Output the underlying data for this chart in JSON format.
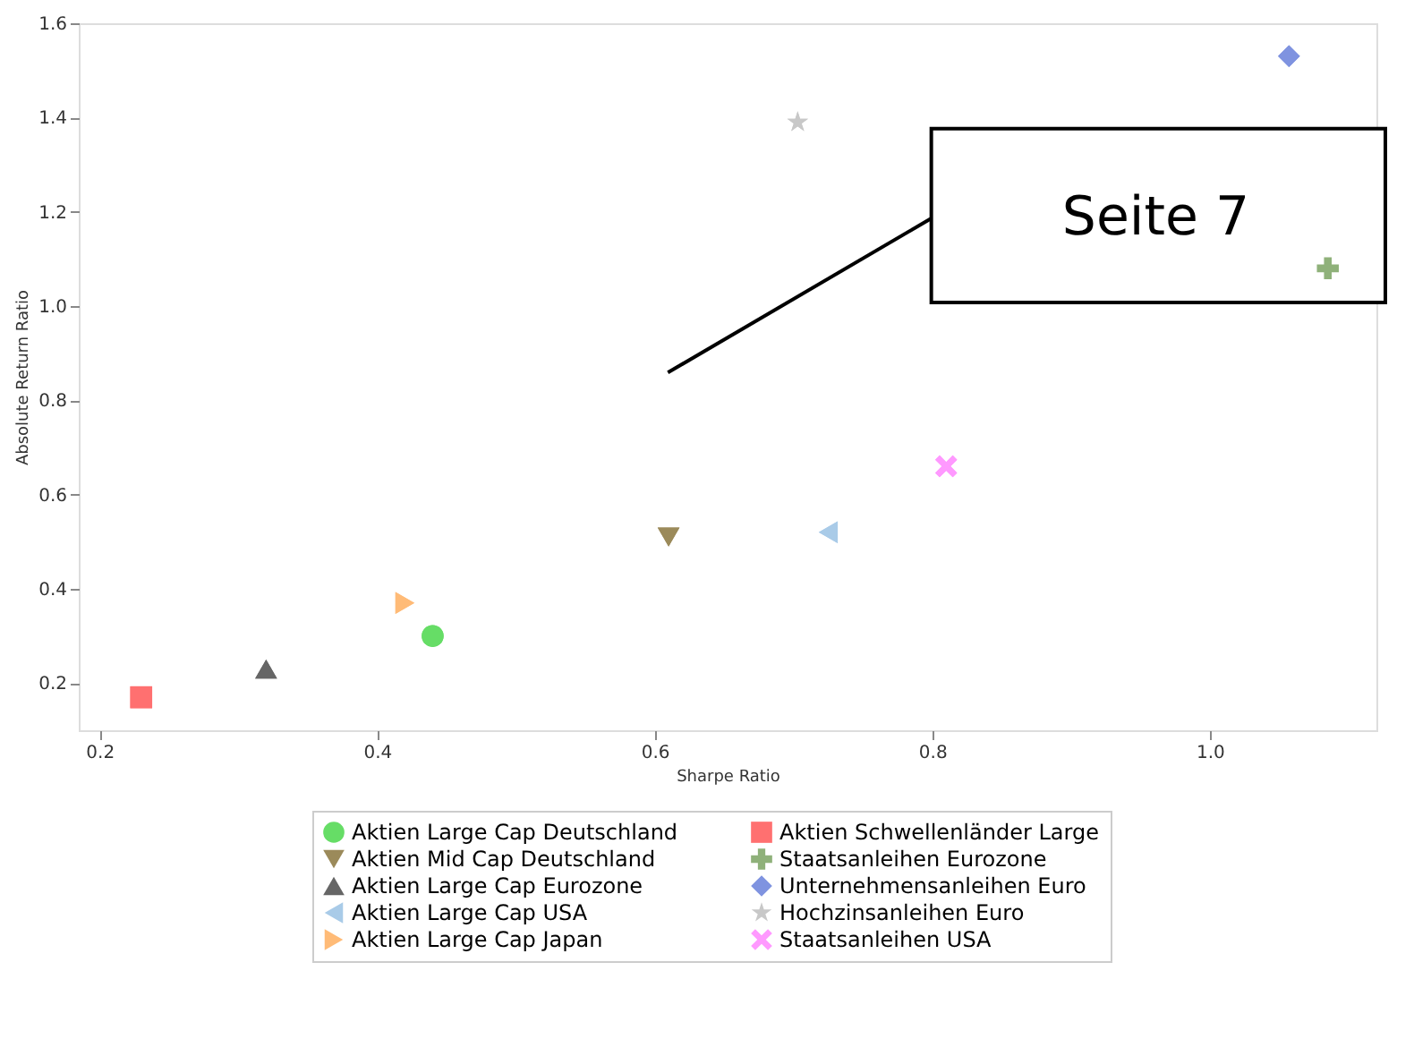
{
  "chart_data": {
    "type": "scatter",
    "xlabel": "Sharpe Ratio",
    "ylabel": "Absolute Return Ratio",
    "xlim": [
      0.185,
      1.12
    ],
    "ylim": [
      0.1,
      1.6
    ],
    "xticks": [
      0.2,
      0.4,
      0.6,
      0.8,
      {
        "value": 1.0,
        "label": "1.0"
      }
    ],
    "yticks": [
      0.2,
      0.4,
      0.6,
      0.8,
      {
        "value": 1.0,
        "label": "1.0"
      },
      1.2,
      1.4,
      1.6
    ],
    "grid": false,
    "legend": "bottom",
    "annotations": [
      "Seite 7"
    ],
    "series": [
      {
        "name": "Aktien Large Cap Deutschland",
        "color": "#66dd66",
        "marker": "circle",
        "x": [
          0.44
        ],
        "values": [
          0.3
        ]
      },
      {
        "name": "Aktien Mid Cap Deutschland",
        "color": "#9b8a5a",
        "marker": "triangle-down",
        "x": [
          0.61
        ],
        "values": [
          0.51
        ]
      },
      {
        "name": "Aktien Large Cap Eurozone",
        "color": "#666666",
        "marker": "triangle",
        "x": [
          0.32
        ],
        "values": [
          0.23
        ]
      },
      {
        "name": "Aktien Large Cap USA",
        "color": "#a9cbe8",
        "marker": "triangle-left",
        "x": [
          0.725
        ],
        "values": [
          0.52
        ]
      },
      {
        "name": "Aktien Large Cap Japan",
        "color": "#ffbb77",
        "marker": "triangle-right",
        "x": [
          0.42
        ],
        "values": [
          0.37
        ]
      },
      {
        "name": "Aktien Schwellenländer Large",
        "color": "#ff7070",
        "marker": "square",
        "x": [
          0.23
        ],
        "values": [
          0.17
        ]
      },
      {
        "name": "Staatsanleihen Eurozone",
        "color": "#8fb17a",
        "marker": "cross",
        "x": [
          1.085
        ],
        "values": [
          1.08
        ]
      },
      {
        "name": "Unternehmensanleihen Euro",
        "color": "#7f93e0",
        "marker": "diamond",
        "x": [
          1.057
        ],
        "values": [
          1.53
        ]
      },
      {
        "name": "Hochzinsanleihen Euro",
        "color": "#c8c8c8",
        "marker": "star",
        "x": [
          0.703
        ],
        "values": [
          1.39
        ]
      },
      {
        "name": "Staatsanleihen USA",
        "color": "#ff99ff",
        "marker": "x",
        "x": [
          0.81
        ],
        "values": [
          0.66
        ]
      }
    ]
  }
}
